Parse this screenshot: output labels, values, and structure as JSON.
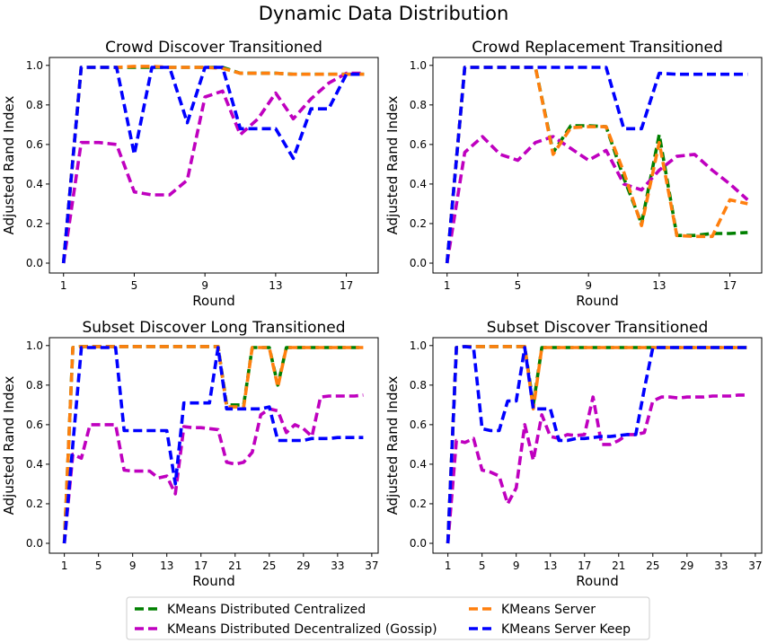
{
  "figure": {
    "title": "Dynamic Data Distribution",
    "legend": [
      {
        "label": "KMeans Distributed Centralized",
        "color": "#008000"
      },
      {
        "label": "KMeans Distributed Decentralized (Gossip)",
        "color": "#bf00bf"
      },
      {
        "label": "KMeans Server",
        "color": "#ff7f0e"
      },
      {
        "label": "KMeans Server Keep",
        "color": "#0000ff"
      }
    ]
  },
  "chart_data": [
    {
      "type": "line",
      "title": "Crowd Discover Transitioned",
      "xlabel": "Round",
      "ylabel": "Adjusted Rand Index",
      "xlim": [
        0.2,
        18.8
      ],
      "ylim": [
        -0.05,
        1.04
      ],
      "xticks": [
        1,
        5,
        9,
        13,
        17
      ],
      "yticks": [
        0.0,
        0.2,
        0.4,
        0.6,
        0.8,
        1.0
      ],
      "x": [
        1,
        2,
        3,
        4,
        5,
        6,
        7,
        8,
        9,
        10,
        11,
        12,
        13,
        14,
        15,
        16,
        17,
        18
      ],
      "series": [
        {
          "name": "KMeans Distributed Centralized",
          "color": "#008000",
          "values": [
            0.0,
            0.99,
            0.99,
            0.99,
            0.99,
            0.99,
            0.99,
            0.99,
            0.99,
            0.99,
            0.96,
            0.96,
            0.96,
            0.955,
            0.955,
            0.955,
            0.955,
            0.955
          ]
        },
        {
          "name": "KMeans Distributed Decentralized (Gossip)",
          "color": "#bf00bf",
          "values": [
            0.0,
            0.61,
            0.61,
            0.6,
            0.36,
            0.345,
            0.345,
            0.42,
            0.84,
            0.87,
            0.65,
            0.73,
            0.86,
            0.73,
            0.83,
            0.91,
            0.96,
            0.96
          ]
        },
        {
          "name": "KMeans Server",
          "color": "#ff7f0e",
          "values": [
            0.0,
            0.99,
            0.99,
            0.99,
            0.995,
            0.995,
            0.99,
            0.99,
            0.99,
            0.985,
            0.96,
            0.96,
            0.96,
            0.955,
            0.955,
            0.955,
            0.955,
            0.955
          ]
        },
        {
          "name": "KMeans Server Keep",
          "color": "#0000ff",
          "values": [
            0.0,
            0.99,
            0.99,
            0.99,
            0.55,
            0.99,
            0.99,
            0.71,
            0.99,
            0.99,
            0.68,
            0.68,
            0.68,
            0.53,
            0.78,
            0.78,
            0.955,
            0.955
          ]
        }
      ]
    },
    {
      "type": "line",
      "title": "Crowd Replacement Transitioned",
      "xlabel": "Round",
      "ylabel": "Adjusted Rand Index",
      "xlim": [
        0.2,
        18.8
      ],
      "ylim": [
        -0.05,
        1.04
      ],
      "xticks": [
        1,
        5,
        9,
        13,
        17
      ],
      "yticks": [
        0.0,
        0.2,
        0.4,
        0.6,
        0.8,
        1.0
      ],
      "x": [
        1,
        2,
        3,
        4,
        5,
        6,
        7,
        8,
        9,
        10,
        11,
        12,
        13,
        14,
        15,
        16,
        17,
        18
      ],
      "series": [
        {
          "name": "KMeans Distributed Centralized",
          "color": "#008000",
          "values": [
            0.0,
            0.99,
            0.99,
            0.99,
            0.99,
            0.99,
            0.56,
            0.695,
            0.695,
            0.69,
            0.43,
            0.2,
            0.65,
            0.14,
            0.14,
            0.15,
            0.15,
            0.155
          ]
        },
        {
          "name": "KMeans Distributed Decentralized (Gossip)",
          "color": "#bf00bf",
          "values": [
            0.0,
            0.56,
            0.64,
            0.55,
            0.52,
            0.61,
            0.64,
            0.58,
            0.52,
            0.57,
            0.4,
            0.37,
            0.47,
            0.54,
            0.55,
            0.47,
            0.4,
            0.32
          ]
        },
        {
          "name": "KMeans Server",
          "color": "#ff7f0e",
          "values": [
            0.0,
            0.99,
            0.99,
            0.99,
            0.99,
            0.99,
            0.55,
            0.685,
            0.69,
            0.69,
            0.46,
            0.19,
            0.61,
            0.14,
            0.135,
            0.135,
            0.32,
            0.3
          ]
        },
        {
          "name": "KMeans Server Keep",
          "color": "#0000ff",
          "values": [
            0.0,
            0.99,
            0.99,
            0.99,
            0.99,
            0.99,
            0.99,
            0.99,
            0.99,
            0.99,
            0.68,
            0.68,
            0.96,
            0.955,
            0.955,
            0.955,
            0.955,
            0.955
          ]
        }
      ]
    },
    {
      "type": "line",
      "title": "Subset Discover Long Transitioned",
      "xlabel": "Round",
      "ylabel": "Adjusted Rand Index",
      "xlim": [
        -0.75,
        37.75
      ],
      "ylim": [
        -0.05,
        1.04
      ],
      "xticks": [
        1,
        5,
        9,
        13,
        17,
        21,
        25,
        29,
        33,
        37
      ],
      "yticks": [
        0.0,
        0.2,
        0.4,
        0.6,
        0.8,
        1.0
      ],
      "x": [
        1,
        2,
        3,
        4,
        5,
        6,
        7,
        8,
        9,
        10,
        11,
        12,
        13,
        14,
        15,
        16,
        17,
        18,
        19,
        20,
        21,
        22,
        23,
        24,
        25,
        26,
        27,
        28,
        29,
        30,
        31,
        32,
        33,
        34,
        35,
        36
      ],
      "series": [
        {
          "name": "KMeans Distributed Centralized",
          "color": "#008000",
          "values": [
            0.0,
            0.99,
            0.995,
            0.995,
            0.995,
            0.995,
            0.995,
            0.995,
            0.995,
            0.995,
            0.995,
            0.995,
            0.995,
            0.995,
            0.995,
            0.995,
            0.995,
            0.995,
            0.995,
            0.7,
            0.7,
            0.7,
            0.99,
            0.99,
            0.99,
            0.8,
            0.99,
            0.99,
            0.99,
            0.99,
            0.99,
            0.99,
            0.99,
            0.99,
            0.99,
            0.99
          ]
        },
        {
          "name": "KMeans Distributed Decentralized (Gossip)",
          "color": "#bf00bf",
          "values": [
            0.0,
            0.45,
            0.43,
            0.6,
            0.6,
            0.6,
            0.6,
            0.37,
            0.365,
            0.365,
            0.365,
            0.33,
            0.34,
            0.25,
            0.59,
            0.585,
            0.585,
            0.58,
            0.575,
            0.41,
            0.4,
            0.41,
            0.46,
            0.65,
            0.68,
            0.67,
            0.56,
            0.6,
            0.58,
            0.54,
            0.74,
            0.745,
            0.745,
            0.745,
            0.745,
            0.75
          ]
        },
        {
          "name": "KMeans Server",
          "color": "#ff7f0e",
          "values": [
            0.0,
            0.99,
            0.995,
            0.995,
            0.995,
            0.995,
            0.995,
            0.995,
            0.995,
            0.995,
            0.995,
            0.995,
            0.995,
            0.995,
            0.995,
            0.995,
            0.995,
            0.995,
            0.995,
            0.69,
            0.69,
            0.69,
            0.99,
            0.99,
            0.99,
            0.79,
            0.99,
            0.99,
            0.99,
            0.99,
            0.99,
            0.99,
            0.99,
            0.99,
            0.99,
            0.99
          ]
        },
        {
          "name": "KMeans Server Keep",
          "color": "#0000ff",
          "values": [
            0.0,
            0.5,
            0.99,
            0.99,
            0.99,
            0.99,
            0.99,
            0.57,
            0.57,
            0.57,
            0.57,
            0.57,
            0.57,
            0.3,
            0.71,
            0.71,
            0.71,
            0.71,
            0.99,
            0.68,
            0.68,
            0.68,
            0.68,
            0.68,
            0.69,
            0.52,
            0.52,
            0.52,
            0.52,
            0.53,
            0.53,
            0.53,
            0.535,
            0.535,
            0.535,
            0.535
          ]
        }
      ]
    },
    {
      "type": "line",
      "title": "Subset Discover Transitioned",
      "xlabel": "Round",
      "ylabel": "Adjusted Rand Index",
      "xlim": [
        -0.75,
        37.75
      ],
      "ylim": [
        -0.05,
        1.04
      ],
      "xticks": [
        1,
        5,
        9,
        13,
        17,
        21,
        25,
        29,
        33,
        37
      ],
      "yticks": [
        0.0,
        0.2,
        0.4,
        0.6,
        0.8,
        1.0
      ],
      "x": [
        1,
        2,
        3,
        4,
        5,
        6,
        7,
        8,
        9,
        10,
        11,
        12,
        13,
        14,
        15,
        16,
        17,
        18,
        19,
        20,
        21,
        22,
        23,
        24,
        25,
        26,
        27,
        28,
        29,
        30,
        31,
        32,
        33,
        34,
        35,
        36
      ],
      "series": [
        {
          "name": "KMeans Distributed Centralized",
          "color": "#008000",
          "values": [
            0.0,
            0.99,
            0.995,
            0.995,
            0.995,
            0.995,
            0.995,
            0.995,
            0.995,
            0.995,
            0.7,
            0.99,
            0.99,
            0.99,
            0.99,
            0.99,
            0.99,
            0.99,
            0.99,
            0.99,
            0.99,
            0.99,
            0.99,
            0.99,
            0.99,
            0.99,
            0.99,
            0.99,
            0.99,
            0.99,
            0.99,
            0.99,
            0.99,
            0.99,
            0.99,
            0.99
          ]
        },
        {
          "name": "KMeans Distributed Decentralized (Gossip)",
          "color": "#bf00bf",
          "values": [
            0.0,
            0.52,
            0.51,
            0.53,
            0.37,
            0.36,
            0.34,
            0.2,
            0.28,
            0.6,
            0.42,
            0.65,
            0.54,
            0.53,
            0.55,
            0.545,
            0.55,
            0.74,
            0.5,
            0.5,
            0.52,
            0.55,
            0.55,
            0.56,
            0.72,
            0.74,
            0.74,
            0.735,
            0.74,
            0.74,
            0.74,
            0.745,
            0.745,
            0.745,
            0.75,
            0.75
          ]
        },
        {
          "name": "KMeans Server",
          "color": "#ff7f0e",
          "values": [
            0.0,
            0.99,
            0.995,
            0.995,
            0.995,
            0.995,
            0.995,
            0.995,
            0.995,
            0.995,
            0.68,
            0.99,
            0.99,
            0.99,
            0.99,
            0.99,
            0.99,
            0.99,
            0.99,
            0.99,
            0.99,
            0.99,
            0.99,
            0.99,
            0.99,
            0.99,
            0.99,
            0.99,
            0.99,
            0.99,
            0.99,
            0.99,
            0.99,
            0.99,
            0.99,
            0.99
          ]
        },
        {
          "name": "KMeans Server Keep",
          "color": "#0000ff",
          "values": [
            0.0,
            0.99,
            0.995,
            0.99,
            0.58,
            0.57,
            0.57,
            0.72,
            0.72,
            0.99,
            0.68,
            0.68,
            0.68,
            0.52,
            0.52,
            0.53,
            0.53,
            0.535,
            0.54,
            0.54,
            0.545,
            0.55,
            0.55,
            0.78,
            0.99,
            0.99,
            0.99,
            0.99,
            0.99,
            0.99,
            0.99,
            0.99,
            0.99,
            0.99,
            0.99,
            0.99
          ]
        }
      ]
    }
  ]
}
